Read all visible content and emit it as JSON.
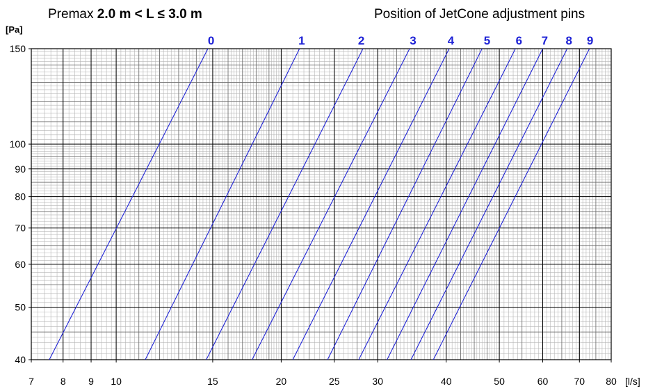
{
  "title": {
    "prefix": "Premax",
    "bold": "2.0 m < L ≤ 3.0 m"
  },
  "right_title": "Position of JetCone adjustment pins",
  "chart_data": {
    "type": "line",
    "title": "Premax 2.0 m < L ≤ 3.0 m",
    "subtitle": "Position of JetCone adjustment pins",
    "xlabel": "[l/s]",
    "ylabel": "[Pa]",
    "xscale": "log",
    "yscale": "log",
    "xlim": [
      7,
      80
    ],
    "ylim": [
      40,
      150
    ],
    "x_ticks": [
      7,
      8,
      9,
      10,
      15,
      20,
      25,
      30,
      40,
      50,
      60,
      70,
      80
    ],
    "y_ticks": [
      40,
      50,
      60,
      70,
      80,
      90,
      100,
      150
    ],
    "grid": true,
    "line_color": "#1f23d6",
    "series": [
      {
        "name": "",
        "x": [
          7.55,
          14.7
        ],
        "y": [
          40,
          150
        ]
      },
      {
        "name": "0",
        "x": [
          11.3,
          21.6
        ],
        "y": [
          40,
          150
        ]
      },
      {
        "name": "1",
        "x": [
          14.6,
          28.2
        ],
        "y": [
          40,
          150
        ]
      },
      {
        "name": "2",
        "x": [
          17.7,
          34.3
        ],
        "y": [
          40,
          150
        ]
      },
      {
        "name": "3",
        "x": [
          21.0,
          40.5
        ],
        "y": [
          40,
          150
        ]
      },
      {
        "name": "4",
        "x": [
          24.3,
          46.5
        ],
        "y": [
          40,
          150
        ]
      },
      {
        "name": "5",
        "x": [
          27.7,
          53.5
        ],
        "y": [
          40,
          150
        ]
      },
      {
        "name": "6",
        "x": [
          31.2,
          60.0
        ],
        "y": [
          40,
          150
        ]
      },
      {
        "name": "7",
        "x": [
          34.5,
          66.5
        ],
        "y": [
          40,
          150
        ]
      },
      {
        "name": "8",
        "x": [
          37.9,
          73.0
        ],
        "y": [
          40,
          150
        ]
      }
    ],
    "pin_labels": [
      {
        "label": "0",
        "x": 14.9
      },
      {
        "label": "1",
        "x": 21.8
      },
      {
        "label": "2",
        "x": 28.0
      },
      {
        "label": "3",
        "x": 34.8
      },
      {
        "label": "4",
        "x": 40.8
      },
      {
        "label": "5",
        "x": 47.5
      },
      {
        "label": "6",
        "x": 54.3
      },
      {
        "label": "7",
        "x": 60.5
      },
      {
        "label": "8",
        "x": 67.0
      },
      {
        "label": "9",
        "x": 73.2
      }
    ]
  }
}
